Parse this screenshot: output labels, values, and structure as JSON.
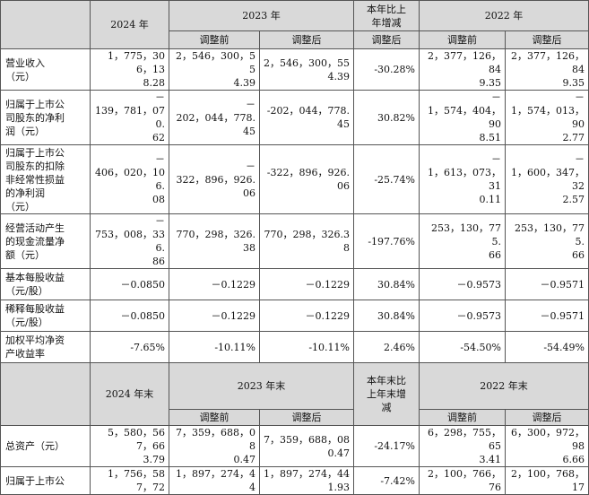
{
  "table1": {
    "headers": {
      "y2024": "2024 年",
      "y2023": "2023 年",
      "yoy": "本年比上\n年增减",
      "y2022": "2022 年",
      "before": "调整前",
      "after": "调整后",
      "after_yoy": "调整后"
    },
    "rows": [
      {
        "label": "营业收入\n（元）",
        "c2024": "1，775，306，13\n8.28",
        "c2023_before": "2，546，300，55\n4.39",
        "c2023_after": "2，546，300，554.39",
        "yoy": "-30.28%",
        "c2022_before": "2，377，126，84\n9.35",
        "c2022_after": "2，377，126，84\n9.35"
      },
      {
        "label": "归属于上市公\n司股东的净利\n润（元）",
        "c2024": "－\n139，781，070.\n62",
        "c2023_before": "－\n202，044，778.\n45",
        "c2023_after": "-202，044，778.45",
        "yoy": "30.82%",
        "c2022_before": "－\n1，574，404，90\n8.51",
        "c2022_after": "－\n1，574，013，90\n2.77"
      },
      {
        "label": "归属于上市公\n司股东的扣除\n非经常性损益\n的净利润\n（元）",
        "c2024": "－\n406，020，106.\n08",
        "c2023_before": "－\n322，896，926.\n06",
        "c2023_after": "-322，896，926.06",
        "yoy": "-25.74%",
        "c2022_before": "－\n1，613，073，31\n0.11",
        "c2022_after": "－\n1，600，347，32\n2.57"
      },
      {
        "label": "经营活动产生\n的现金流量净\n额（元）",
        "c2024": "－\n753，008，336.\n86",
        "c2023_before": "770，298，326.\n38",
        "c2023_after": "770，298，326.38",
        "yoy": "-197.76%",
        "c2022_before": "253，130，775.\n66",
        "c2022_after": "253，130，775.\n66"
      },
      {
        "label": "基本每股收益\n（元/股）",
        "c2024": "－0.0850",
        "c2023_before": "－0.1229",
        "c2023_after": "－0.1229",
        "yoy": "30.84%",
        "c2022_before": "－0.9573",
        "c2022_after": "－0.9571"
      },
      {
        "label": "稀释每股收益\n（元/股）",
        "c2024": "－0.0850",
        "c2023_before": "－0.1229",
        "c2023_after": "－0.1229",
        "yoy": "30.84%",
        "c2022_before": "－0.9573",
        "c2022_after": "－0.9571"
      },
      {
        "label": "加权平均净资\n产收益率",
        "c2024": "-7.65%",
        "c2023_before": "-10.11%",
        "c2023_after": "-10.11%",
        "yoy": "2.46%",
        "c2022_before": "-54.50%",
        "c2022_after": "-54.49%"
      }
    ]
  },
  "table2": {
    "headers": {
      "y2024": "2024 年末",
      "y2023": "2023 年末",
      "yoy": "本年末比\n上年末增\n减",
      "y2022": "2022 年末",
      "before": "调整前",
      "after": "调整后",
      "before_2022": "调整前",
      "after_2022": "调整后"
    },
    "rows": [
      {
        "label": "总资产（元）",
        "c2024": "5，580，567，66\n3.79",
        "c2023_before": "7，359，688，08\n0.47",
        "c2023_after": "7，359，688，080.47",
        "yoy": "-24.17%",
        "c2022_before": "6，298，755，65\n3.41",
        "c2022_after": "6，300，972，98\n6.66"
      },
      {
        "label": "归属于上市公",
        "c2024": "1，756，587，72",
        "c2023_before": "1，897，274，44",
        "c2023_after": "1，897，274，441.93",
        "yoy": "-7.42%",
        "c2022_before": "2，100，766，76",
        "c2022_after": "2，100，768，17"
      }
    ]
  }
}
